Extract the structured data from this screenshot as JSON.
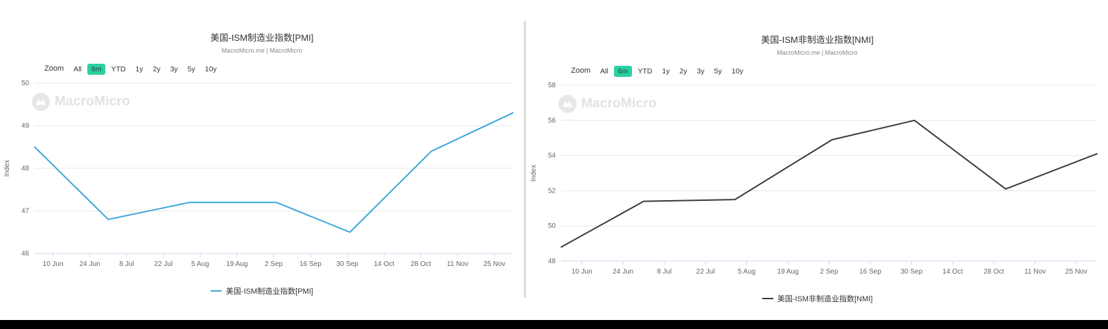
{
  "page": {
    "background": "#ffffff",
    "bottom_bar_color": "#000000"
  },
  "charts": [
    {
      "title": "美国-ISM制造业指数[PMI]",
      "subtitle": "MacroMicro.me | MacroMicro",
      "watermark": "MacroMicro",
      "ylabel": "Index",
      "legend": "美国-ISM制造业指数[PMI]",
      "line_color": "#3da7db",
      "zoom": {
        "label": "Zoom",
        "buttons": [
          "All",
          "6m",
          "YTD",
          "1y",
          "2y",
          "3y",
          "5y",
          "10y"
        ],
        "active": "6m",
        "active_color": "#2ed0a2"
      },
      "chart_data": {
        "type": "line",
        "series_name": "美国-ISM制造业指数[PMI]",
        "x": [
          "3 Jun",
          "1 Jul",
          "1 Aug",
          "3 Sep",
          "1 Oct",
          "1 Nov",
          "2 Dec"
        ],
        "x_days": [
          0,
          28,
          59,
          92,
          120,
          151,
          182
        ],
        "values": [
          48.5,
          46.8,
          47.2,
          47.2,
          46.5,
          48.4,
          49.3
        ],
        "ylim": [
          46,
          50
        ],
        "yticks": [
          46,
          47,
          48,
          49,
          50
        ],
        "xticks": [
          "10 Jun",
          "24 Jun",
          "8 Jul",
          "22 Jul",
          "5 Aug",
          "19 Aug",
          "2 Sep",
          "16 Sep",
          "30 Sep",
          "14 Oct",
          "28 Oct",
          "11 Nov",
          "25 Nov"
        ],
        "xtick_days": [
          7,
          21,
          35,
          49,
          63,
          77,
          91,
          105,
          119,
          133,
          147,
          161,
          175
        ],
        "xlim_days": [
          0,
          182
        ],
        "ylabel": "Index",
        "grid": "horizontal-only",
        "legend_position": "bottom-center"
      }
    },
    {
      "title": "美国-ISM非制造业指数[NMI]",
      "subtitle": "MacroMicro.me | MacroMicro",
      "watermark": "MacroMicro",
      "ylabel": "Index",
      "legend": "美国-ISM非制造业指数[NMI]",
      "line_color": "#3b3b3b",
      "zoom": {
        "label": "Zoom",
        "buttons": [
          "All",
          "6m",
          "YTD",
          "1y",
          "2y",
          "3y",
          "5y",
          "10y"
        ],
        "active": "6m",
        "active_color": "#2ed0a2"
      },
      "chart_data": {
        "type": "line",
        "series_name": "美国-ISM非制造业指数[NMI]",
        "x": [
          "3 Jun",
          "1 Jul",
          "1 Aug",
          "3 Sep",
          "1 Oct",
          "1 Nov",
          "2 Dec"
        ],
        "x_days": [
          0,
          28,
          59,
          92,
          120,
          151,
          182
        ],
        "values": [
          48.8,
          51.4,
          51.5,
          54.9,
          56.0,
          52.1,
          54.1
        ],
        "ylim": [
          48,
          58
        ],
        "yticks": [
          48,
          50,
          52,
          54,
          56,
          58
        ],
        "xticks": [
          "10 Jun",
          "24 Jun",
          "8 Jul",
          "22 Jul",
          "5 Aug",
          "19 Aug",
          "2 Sep",
          "16 Sep",
          "30 Sep",
          "14 Oct",
          "28 Oct",
          "11 Nov",
          "25 Nov"
        ],
        "xtick_days": [
          7,
          21,
          35,
          49,
          63,
          77,
          91,
          105,
          119,
          133,
          147,
          161,
          175
        ],
        "xlim_days": [
          0,
          182
        ],
        "ylabel": "Index",
        "grid": "horizontal-only",
        "legend_position": "bottom-center"
      }
    }
  ]
}
